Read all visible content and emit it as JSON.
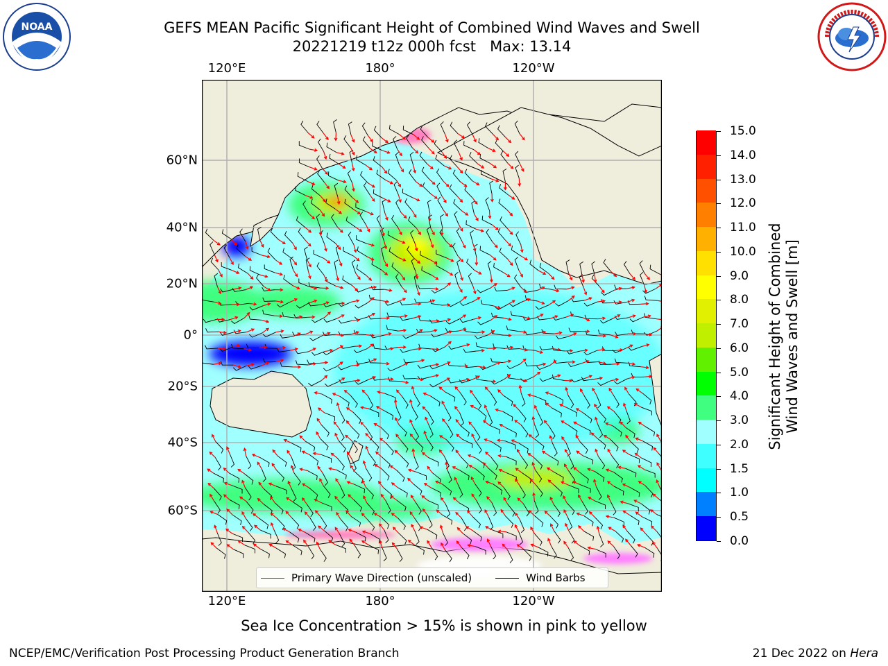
{
  "header": {
    "title_line1": "GEFS MEAN Pacific Significant Height of Combined Wind Waves and Swell",
    "title_line2": "20221219 t12z 000h fcst   Max: 13.14"
  },
  "logos": {
    "left": {
      "text": "NOAA",
      "ring_text": "NATIONAL OCEANIC AND ATMOSPHERIC ADMINISTRATION · U.S. DEPARTMENT OF COMMERCE"
    },
    "right": {
      "ring_text": "NATIONAL WEATHER SERVICE"
    }
  },
  "map": {
    "lon_labels": [
      "120°E",
      "180°",
      "120°W"
    ],
    "lat_labels": [
      "60°N",
      "40°N",
      "20°N",
      "0°",
      "20°S",
      "40°S",
      "60°S"
    ],
    "legend": {
      "wave_dir": "Primary Wave Direction (unscaled)",
      "wind_barbs": "Wind Barbs",
      "wave_dir_color": "#ff0000",
      "wind_barbs_color": "#000000"
    },
    "land_color": "#efeddc"
  },
  "colorbar": {
    "label_line1": "Significant Height of Combined",
    "label_line2": "Wind Waves and Swell [m]",
    "ticks": [
      "0.0",
      "0.5",
      "1.0",
      "1.5",
      "2.0",
      "3.0",
      "4.0",
      "5.0",
      "6.0",
      "7.0",
      "8.0",
      "9.0",
      "10.0",
      "11.0",
      "12.0",
      "13.0",
      "14.0",
      "15.0"
    ],
    "colors": [
      "#0000ff",
      "#0080ff",
      "#00ffff",
      "#40ffff",
      "#a0ffff",
      "#40ff80",
      "#00ff00",
      "#60f000",
      "#c0f000",
      "#e0f000",
      "#ffff00",
      "#ffe000",
      "#ffb000",
      "#ff8000",
      "#ff5000",
      "#ff2000",
      "#ff0000"
    ]
  },
  "caption": "Sea Ice Concentration > 15% is shown in pink to yellow",
  "footer": {
    "left": "NCEP/EMC/Verification Post Processing Product Generation Branch",
    "right_prefix": "21 Dec 2022 on ",
    "right_host": "Hera"
  }
}
